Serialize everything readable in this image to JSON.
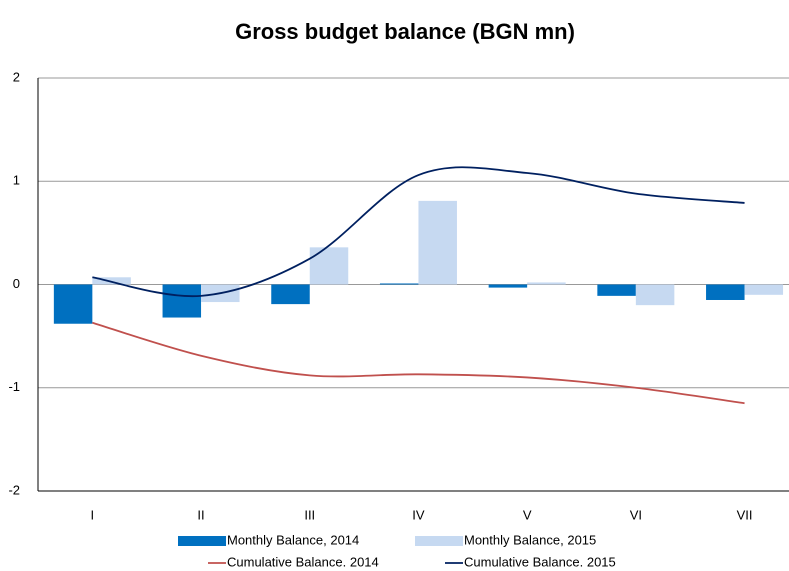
{
  "chart_data": {
    "type": "bar_line",
    "title": "Gross budget balance (BGN mn)",
    "categories": [
      "I",
      "II",
      "III",
      "IV",
      "V",
      "VI",
      "VII"
    ],
    "ylim": [
      -2,
      2
    ],
    "yticks": [
      -2,
      -1,
      0,
      1,
      2
    ],
    "grid": true,
    "series": [
      {
        "name": "Monthly Balance, 2014",
        "type": "bar",
        "color": "#0070c0",
        "values": [
          -0.38,
          -0.32,
          -0.19,
          0.01,
          -0.03,
          -0.11,
          -0.15
        ]
      },
      {
        "name": "Monthly Balance, 2015",
        "type": "bar",
        "color": "#c6d9f1",
        "values": [
          0.07,
          -0.17,
          0.36,
          0.81,
          0.02,
          -0.2,
          -0.1
        ]
      },
      {
        "name": "Cumulative Balance. 2014",
        "type": "line",
        "color": "#c0504d",
        "values": [
          -0.37,
          -0.69,
          -0.88,
          -0.87,
          -0.9,
          -1.0,
          -1.15
        ]
      },
      {
        "name": "Cumulative Balance. 2015",
        "type": "line",
        "color": "#002060",
        "values": [
          0.07,
          -0.11,
          0.25,
          1.06,
          1.08,
          0.88,
          0.79
        ]
      }
    ],
    "legend": "bottom"
  }
}
